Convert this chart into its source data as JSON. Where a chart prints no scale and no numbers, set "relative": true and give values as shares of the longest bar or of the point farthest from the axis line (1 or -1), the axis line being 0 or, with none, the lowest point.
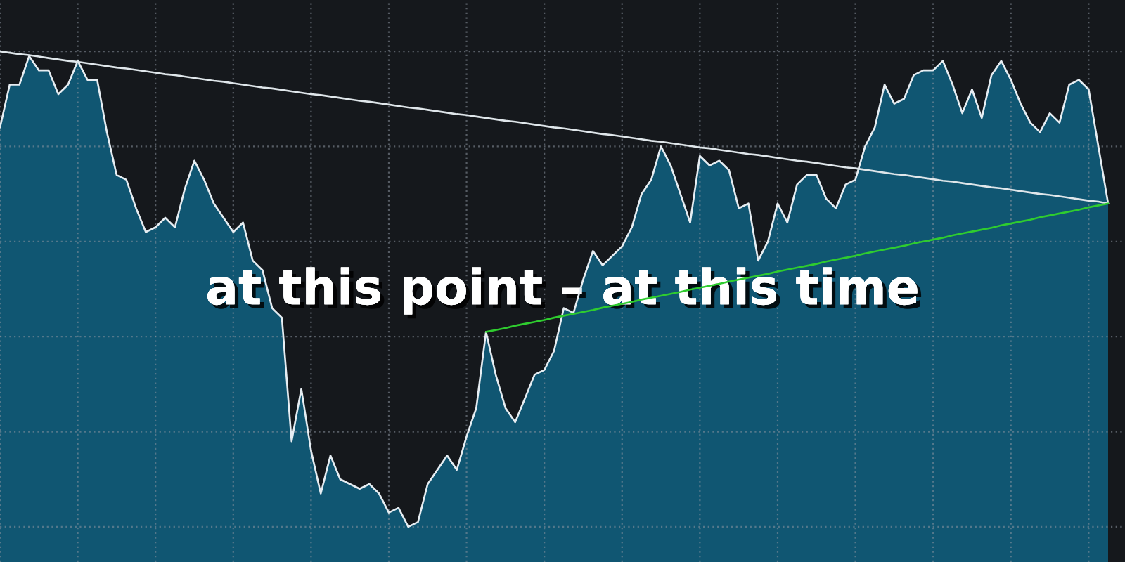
{
  "chart_data": {
    "type": "area",
    "title": "at this point – at this time",
    "relative": true,
    "grid": true,
    "categories": [
      null,
      null,
      null,
      null,
      null,
      null,
      null,
      null,
      null,
      null,
      null,
      null,
      null,
      null,
      null,
      null,
      null,
      null,
      null,
      null,
      null,
      null,
      null,
      null,
      null,
      null,
      null,
      null,
      null,
      null,
      null,
      null,
      null,
      null,
      null,
      null,
      null,
      null,
      null,
      null,
      null,
      null,
      null,
      null,
      null,
      null,
      null,
      null,
      null,
      null,
      null,
      null,
      null,
      null,
      null,
      null,
      null,
      null,
      null,
      null,
      null,
      null,
      null,
      null,
      null,
      null,
      null,
      null,
      null,
      null,
      null,
      null,
      null,
      null,
      null,
      null,
      null,
      null,
      null,
      null,
      null,
      null,
      null,
      null,
      null,
      null,
      null,
      null,
      null,
      null,
      null,
      null,
      null,
      null,
      null,
      null,
      null,
      null,
      null,
      null,
      null,
      null,
      null,
      null,
      null,
      null,
      null,
      null,
      null,
      null,
      null,
      null,
      null,
      null,
      null
    ],
    "series": [
      {
        "color": "#105672",
        "values": [
          0.84,
          0.93,
          0.93,
          0.99,
          0.96,
          0.96,
          0.91,
          0.93,
          0.98,
          0.94,
          0.94,
          0.83,
          0.74,
          0.73,
          0.67,
          0.62,
          0.63,
          0.65,
          0.63,
          0.71,
          0.77,
          0.73,
          0.68,
          0.65,
          0.62,
          0.64,
          0.56,
          0.54,
          0.46,
          0.44,
          0.18,
          0.29,
          0.16,
          0.07,
          0.15,
          0.1,
          0.09,
          0.08,
          0.09,
          0.07,
          0.03,
          0.04,
          0,
          0.01,
          0.09,
          0.12,
          0.15,
          0.12,
          0.19,
          0.25,
          0.41,
          0.32,
          0.25,
          0.22,
          0.27,
          0.32,
          0.33,
          0.37,
          0.46,
          0.45,
          0.52,
          0.58,
          0.55,
          0.57,
          0.59,
          0.63,
          0.7,
          0.73,
          0.8,
          0.76,
          0.7,
          0.64,
          0.78,
          0.76,
          0.77,
          0.75,
          0.67,
          0.68,
          0.56,
          0.6,
          0.68,
          0.64,
          0.72,
          0.74,
          0.74,
          0.69,
          0.67,
          0.72,
          0.73,
          0.8,
          0.84,
          0.93,
          0.89,
          0.9,
          0.95,
          0.96,
          0.96,
          0.98,
          0.93,
          0.87,
          0.92,
          0.86,
          0.95,
          0.98,
          0.94,
          0.89,
          0.85,
          0.83,
          0.87,
          0.85,
          0.93,
          0.94,
          0.92,
          0.8,
          0.68
        ]
      },
      {
        "type": "line",
        "color": "#dfe6ea",
        "values": [
          1.0,
          0.997,
          0.994,
          0.992,
          0.989,
          0.986,
          0.983,
          0.98,
          0.978,
          0.975,
          0.972,
          0.969,
          0.966,
          0.964,
          0.961,
          0.958,
          0.955,
          0.952,
          0.95,
          0.947,
          0.944,
          0.941,
          0.938,
          0.936,
          0.933,
          0.93,
          0.927,
          0.924,
          0.922,
          0.919,
          0.916,
          0.913,
          0.91,
          0.908,
          0.905,
          0.902,
          0.899,
          0.896,
          0.894,
          0.891,
          0.888,
          0.885,
          0.882,
          0.88,
          0.877,
          0.874,
          0.871,
          0.868,
          0.866,
          0.863,
          0.86,
          0.857,
          0.854,
          0.852,
          0.849,
          0.846,
          0.843,
          0.84,
          0.838,
          0.835,
          0.832,
          0.829,
          0.826,
          0.824,
          0.821,
          0.818,
          0.815,
          0.812,
          0.81,
          0.807,
          0.804,
          0.801,
          0.798,
          0.796,
          0.793,
          0.79,
          0.787,
          0.784,
          0.782,
          0.779,
          0.776,
          0.773,
          0.77,
          0.768,
          0.765,
          0.762,
          0.759,
          0.756,
          0.754,
          0.751,
          0.748,
          0.745,
          0.742,
          0.74,
          0.737,
          0.734,
          0.731,
          0.728,
          0.726,
          0.723,
          0.72,
          0.717,
          0.714,
          0.712,
          0.709,
          0.706,
          0.703,
          0.7,
          0.698,
          0.695,
          0.692,
          0.689,
          0.686,
          0.684,
          0.68
        ]
      },
      {
        "type": "line",
        "color": "#2fcc2f",
        "values": [
          null,
          null,
          null,
          null,
          null,
          null,
          null,
          null,
          null,
          null,
          null,
          null,
          null,
          null,
          null,
          null,
          null,
          null,
          null,
          null,
          null,
          null,
          null,
          null,
          null,
          null,
          null,
          null,
          null,
          null,
          null,
          null,
          null,
          null,
          null,
          null,
          null,
          null,
          null,
          null,
          null,
          null,
          null,
          null,
          null,
          null,
          null,
          null,
          null,
          null,
          0.41,
          0.414,
          0.418,
          0.423,
          0.427,
          0.431,
          0.435,
          0.44,
          0.444,
          0.448,
          0.452,
          0.456,
          0.461,
          0.465,
          0.469,
          0.473,
          0.478,
          0.482,
          0.486,
          0.49,
          0.494,
          0.499,
          0.503,
          0.507,
          0.511,
          0.516,
          0.52,
          0.524,
          0.528,
          0.532,
          0.537,
          0.541,
          0.545,
          0.549,
          0.553,
          0.558,
          0.562,
          0.566,
          0.57,
          0.575,
          0.579,
          0.583,
          0.587,
          0.591,
          0.596,
          0.6,
          0.604,
          0.608,
          0.613,
          0.617,
          0.621,
          0.625,
          0.629,
          0.634,
          0.638,
          0.642,
          0.646,
          0.651,
          0.655,
          0.659,
          0.663,
          0.667,
          0.672,
          0.676,
          0.68
        ]
      }
    ]
  }
}
